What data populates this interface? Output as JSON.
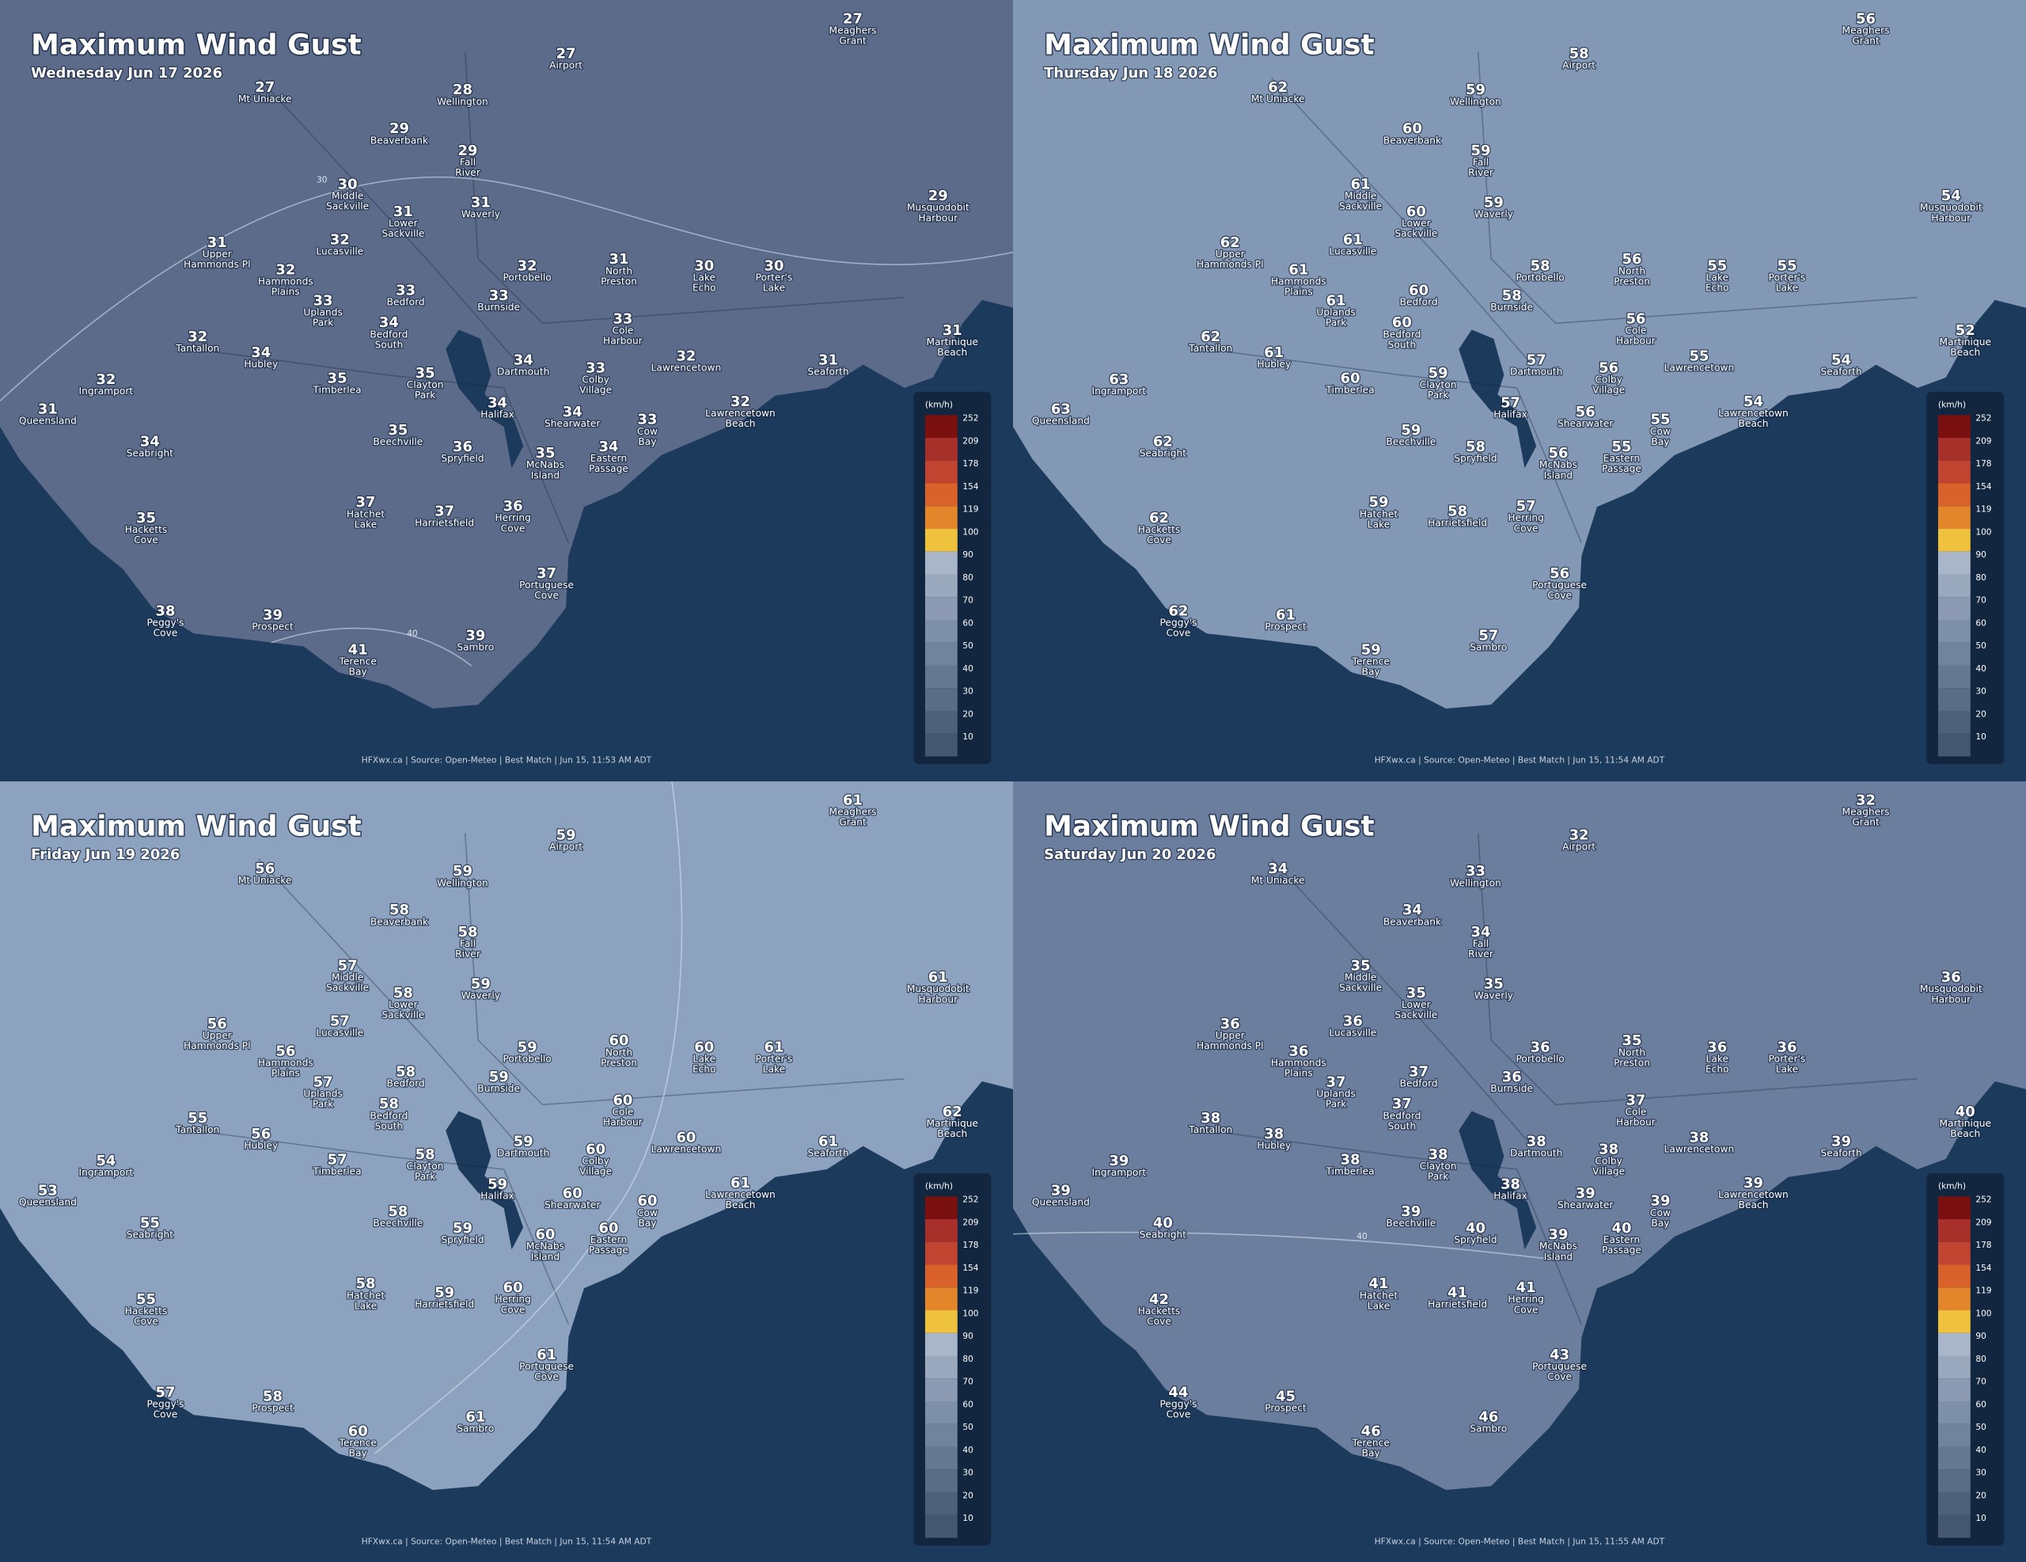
{
  "legend": {
    "unit": "(km/h)",
    "labels": [
      252,
      209,
      178,
      154,
      119,
      100,
      90,
      80,
      70,
      60,
      50,
      40,
      30,
      20,
      10
    ],
    "colors": [
      "#7a1010",
      "#a8302a",
      "#c14430",
      "#d9622a",
      "#e2852b",
      "#efc23e",
      "#a9b6ca",
      "#9aa8be",
      "#8c9bb3",
      "#7e8fa9",
      "#72839d",
      "#667891",
      "#5a6c86",
      "#4f617a",
      "#45566f"
    ]
  },
  "places": [
    [
      "Meaghers",
      "Grant"
    ],
    [
      "Airport"
    ],
    [
      "Mt Uniacke"
    ],
    [
      "Wellington"
    ],
    [
      "Beaverbank"
    ],
    [
      "Fall",
      "River"
    ],
    [
      "Middle",
      "Sackville"
    ],
    [
      "Lower",
      "Sackville"
    ],
    [
      "Waverly"
    ],
    [
      "Musquodobit",
      "Harbour"
    ],
    [
      "Upper",
      "Hammonds Pl"
    ],
    [
      "Lucasville"
    ],
    [
      "Hammonds",
      "Plains"
    ],
    [
      "Portobello"
    ],
    [
      "North",
      "Preston"
    ],
    [
      "Lake",
      "Echo"
    ],
    [
      "Porter's",
      "Lake"
    ],
    [
      "Bedford"
    ],
    [
      "Uplands",
      "Park"
    ],
    [
      "Burnside"
    ],
    [
      "Bedford",
      "South"
    ],
    [
      "Cole",
      "Harbour"
    ],
    [
      "Martinique",
      "Beach"
    ],
    [
      "Tantallon"
    ],
    [
      "Hubley"
    ],
    [
      "Dartmouth"
    ],
    [
      "Colby",
      "Village"
    ],
    [
      "Lawrencetown"
    ],
    [
      "Seaforth"
    ],
    [
      "Ingramport"
    ],
    [
      "Timberlea"
    ],
    [
      "Clayton",
      "Park"
    ],
    [
      "Halifax"
    ],
    [
      "Shearwater"
    ],
    [
      "Lawrencetown",
      "Beach"
    ],
    [
      "Queensland"
    ],
    [
      "Cow",
      "Bay"
    ],
    [
      "Beechville"
    ],
    [
      "Seabright"
    ],
    [
      "Spryfield"
    ],
    [
      "McNabs",
      "Island"
    ],
    [
      "Eastern",
      "Passage"
    ],
    [
      "Hatchet",
      "Lake"
    ],
    [
      "Harrietsfield"
    ],
    [
      "Herring",
      "Cove"
    ],
    [
      "Hacketts",
      "Cove"
    ],
    [
      "Portuguese",
      "Cove"
    ],
    [
      "Peggy's",
      "Cove"
    ],
    [
      "Prospect"
    ],
    [
      "Sambro"
    ],
    [
      "Terence",
      "Bay"
    ]
  ],
  "panels": [
    {
      "title": "Maximum Wind Gust",
      "date": "Wednesday Jun 17 2026",
      "color": "#5b6b89",
      "values": [
        27,
        27,
        27,
        28,
        29,
        29,
        30,
        31,
        31,
        29,
        31,
        32,
        32,
        32,
        31,
        30,
        30,
        33,
        33,
        33,
        34,
        33,
        31,
        32,
        34,
        34,
        33,
        32,
        31,
        32,
        35,
        35,
        34,
        34,
        32,
        31,
        33,
        35,
        34,
        36,
        35,
        34,
        37,
        37,
        36,
        35,
        37,
        38,
        39,
        39,
        41
      ],
      "contour_labels": [
        "30",
        "40"
      ],
      "footer": "HFXwx.ca | Source: Open-Meteo | Best Match | Jun 15, 11:53 AM ADT"
    },
    {
      "title": "Maximum Wind Gust",
      "date": "Thursday Jun 18 2026",
      "color": "#8298b5",
      "values": [
        56,
        58,
        62,
        59,
        60,
        59,
        61,
        60,
        59,
        54,
        62,
        61,
        61,
        58,
        56,
        55,
        55,
        60,
        61,
        58,
        60,
        56,
        52,
        62,
        61,
        57,
        56,
        55,
        54,
        63,
        60,
        59,
        57,
        56,
        54,
        63,
        55,
        59,
        62,
        58,
        56,
        55,
        59,
        58,
        57,
        62,
        56,
        62,
        61,
        57,
        59
      ],
      "contour_labels": [],
      "footer": "HFXwx.ca | Source: Open-Meteo | Best Match | Jun 15, 11:54 AM ADT"
    },
    {
      "title": "Maximum Wind Gust",
      "date": "Friday Jun 19 2026",
      "color": "#8ca2be",
      "values": [
        61,
        59,
        56,
        59,
        58,
        58,
        57,
        58,
        59,
        61,
        56,
        57,
        56,
        59,
        60,
        60,
        61,
        58,
        57,
        59,
        58,
        60,
        62,
        55,
        56,
        59,
        60,
        60,
        61,
        54,
        57,
        58,
        59,
        60,
        61,
        53,
        60,
        58,
        55,
        59,
        60,
        60,
        58,
        59,
        60,
        55,
        61,
        57,
        58,
        61,
        60
      ],
      "contour_labels": [],
      "footer": "HFXwx.ca | Source: Open-Meteo | Best Match | Jun 15, 11:54 AM ADT"
    },
    {
      "title": "Maximum Wind Gust",
      "date": "Saturday Jun 20 2026",
      "color": "#6b7e9e",
      "values": [
        32,
        32,
        34,
        33,
        34,
        34,
        35,
        35,
        35,
        36,
        36,
        36,
        36,
        36,
        35,
        36,
        36,
        37,
        37,
        36,
        37,
        37,
        40,
        38,
        38,
        38,
        38,
        38,
        39,
        39,
        38,
        38,
        38,
        39,
        39,
        39,
        39,
        39,
        40,
        40,
        39,
        40,
        41,
        41,
        41,
        42,
        43,
        44,
        45,
        46,
        46
      ],
      "contour_labels": [
        "40"
      ],
      "footer": "HFXwx.ca | Source: Open-Meteo | Best Match | Jun 15, 11:55 AM ADT"
    }
  ]
}
